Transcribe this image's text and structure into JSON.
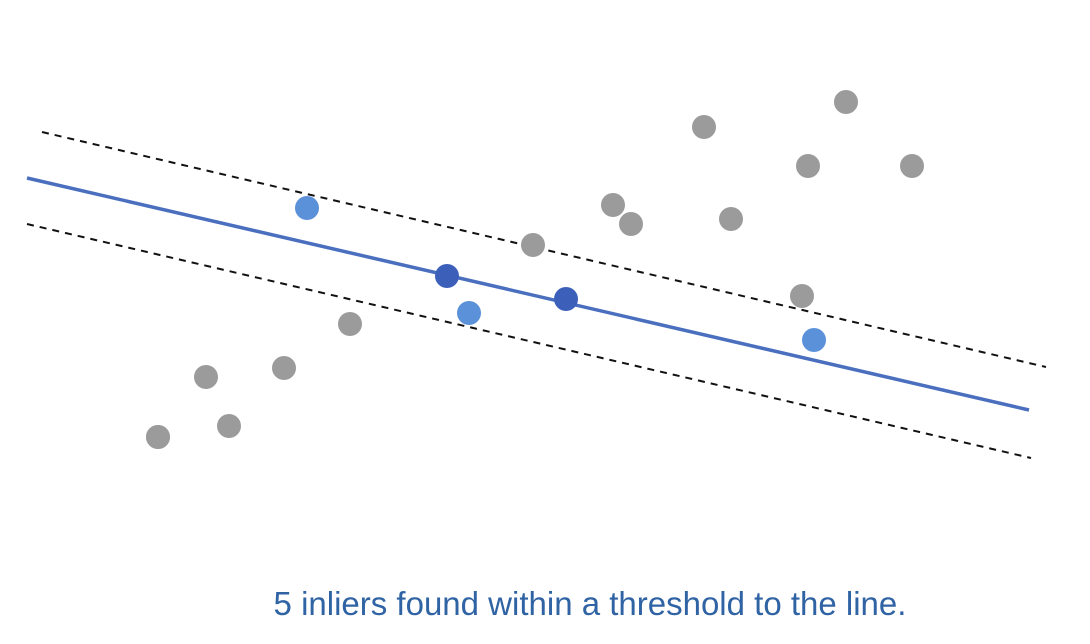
{
  "caption": "5 inliers found within a threshold to the line.",
  "colors": {
    "fit_line": "#4a6fbf",
    "threshold_line": "#111111",
    "outlier": "#9b9b9b",
    "inlier_light": "#5b91d9",
    "inlier_dark": "#3c5fba",
    "caption": "#2f63a4"
  },
  "icon_names": {
    "outlier": "gray-dot",
    "inlier": "blue-dot"
  },
  "threshold_line_style": "dashed",
  "points": [
    {
      "kind": "outlier"
    },
    {
      "kind": "outlier"
    },
    {
      "kind": "outlier"
    },
    {
      "kind": "outlier"
    },
    {
      "kind": "outlier"
    },
    {
      "kind": "outlier"
    },
    {
      "kind": "outlier"
    },
    {
      "kind": "outlier"
    },
    {
      "kind": "outlier"
    },
    {
      "kind": "outlier"
    },
    {
      "kind": "outlier"
    },
    {
      "kind": "outlier"
    },
    {
      "kind": "outlier"
    },
    {
      "kind": "outlier"
    },
    {
      "kind": "outlier"
    },
    {
      "kind": "inlier_light"
    },
    {
      "kind": "inlier_light"
    },
    {
      "kind": "inlier_light"
    },
    {
      "kind": "inlier_dark"
    },
    {
      "kind": "inlier_dark"
    }
  ]
}
